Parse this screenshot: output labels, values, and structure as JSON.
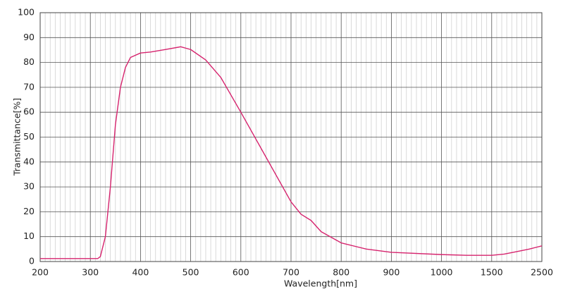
{
  "chart_data": {
    "type": "line",
    "x_label": "Wavelength[nm]",
    "y_label": "Transmittance[%]",
    "x": [
      200,
      300,
      315,
      320,
      330,
      340,
      350,
      360,
      370,
      380,
      400,
      420,
      450,
      480,
      500,
      530,
      560,
      600,
      650,
      700,
      720,
      740,
      760,
      800,
      850,
      900,
      1000,
      1250,
      1500,
      1750,
      2000,
      2250,
      2500
    ],
    "values": [
      1.2,
      1.2,
      1.2,
      2,
      10,
      30,
      55,
      70,
      78,
      82,
      83.8,
      84.2,
      85.2,
      86.3,
      85.2,
      81,
      74,
      60,
      42,
      24,
      19,
      16.5,
      12,
      7.5,
      5,
      3.7,
      2.8,
      2.5,
      2.5,
      3,
      4,
      5,
      6.3
    ],
    "color": "#d6246e",
    "xlim": [
      200,
      2500
    ],
    "xticks": [
      200,
      300,
      400,
      500,
      600,
      700,
      800,
      900,
      1000,
      1500,
      2500
    ],
    "ylim": [
      0,
      100
    ],
    "yticks": [
      0,
      10,
      20,
      30,
      40,
      50,
      60,
      70,
      80,
      90,
      100
    ],
    "grid": true
  }
}
